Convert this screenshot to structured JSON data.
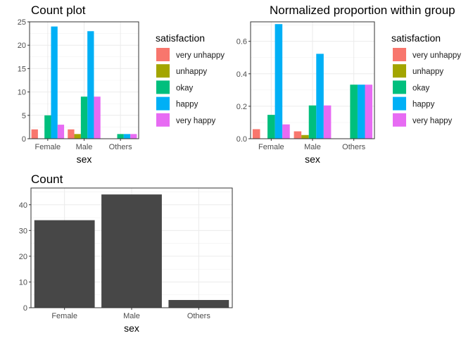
{
  "chart_data": [
    {
      "id": "count-plot",
      "type": "bar",
      "title": "Count plot",
      "xlabel": "sex",
      "ylabel": "",
      "categories": [
        "Female",
        "Male",
        "Others"
      ],
      "ylim": [
        0,
        25
      ],
      "yticks": [
        0,
        5,
        10,
        15,
        20,
        25
      ],
      "ytick_labels": [
        "0",
        "5",
        "10",
        "15",
        "20",
        "25"
      ],
      "grid": true,
      "legend_placement": "right",
      "legend_title": "satisfaction",
      "series": [
        {
          "name": "very unhappy",
          "color": "#F8766D",
          "values": [
            2,
            2,
            0
          ]
        },
        {
          "name": "unhappy",
          "color": "#A3A500",
          "values": [
            0,
            1,
            0
          ]
        },
        {
          "name": "okay",
          "color": "#00BF7D",
          "values": [
            5,
            9,
            1
          ]
        },
        {
          "name": "happy",
          "color": "#00B0F6",
          "values": [
            24,
            23,
            1
          ]
        },
        {
          "name": "very happy",
          "color": "#E76BF3",
          "values": [
            3,
            9,
            1
          ]
        }
      ]
    },
    {
      "id": "proportion-plot",
      "type": "bar",
      "title": "Normalized proportion within group",
      "xlabel": "sex",
      "ylabel": "",
      "categories": [
        "Female",
        "Male",
        "Others"
      ],
      "ylim": [
        0,
        0.72
      ],
      "yticks": [
        0,
        0.2,
        0.4,
        0.6
      ],
      "ytick_labels": [
        "0.0",
        "0.2",
        "0.4",
        "0.6"
      ],
      "grid": true,
      "legend_placement": "right",
      "legend_title": "satisfaction",
      "series": [
        {
          "name": "very unhappy",
          "color": "#F8766D",
          "values": [
            0.0588,
            0.0455,
            0
          ]
        },
        {
          "name": "unhappy",
          "color": "#A3A500",
          "values": [
            0,
            0.0227,
            0
          ]
        },
        {
          "name": "okay",
          "color": "#00BF7D",
          "values": [
            0.147,
            0.205,
            0.333
          ]
        },
        {
          "name": "happy",
          "color": "#00B0F6",
          "values": [
            0.706,
            0.523,
            0.333
          ]
        },
        {
          "name": "very happy",
          "color": "#E76BF3",
          "values": [
            0.0882,
            0.205,
            0.333
          ]
        }
      ]
    },
    {
      "id": "total-count-plot",
      "type": "bar",
      "title": "Count",
      "xlabel": "sex",
      "ylabel": "",
      "categories": [
        "Female",
        "Male",
        "Others"
      ],
      "values": [
        34,
        44,
        3
      ],
      "color": "#474747",
      "ylim": [
        0,
        46.5
      ],
      "yticks": [
        0,
        10,
        20,
        30,
        40
      ],
      "ytick_labels": [
        "0",
        "10",
        "20",
        "30",
        "40"
      ],
      "grid": true
    }
  ]
}
